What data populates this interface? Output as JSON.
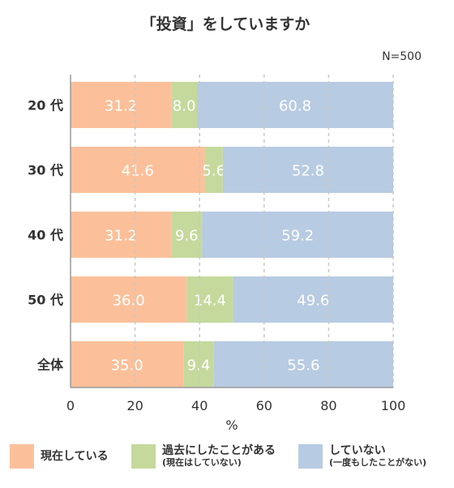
{
  "chart_data": {
    "type": "bar",
    "orientation": "horizontal",
    "stacked": true,
    "title": "「投資」をしていますか",
    "note": "N=500",
    "categories": [
      "20 代",
      "30 代",
      "40 代",
      "50 代",
      "全体"
    ],
    "series": [
      {
        "name": "現在している",
        "color": "#fbc09a",
        "values": [
          31.2,
          41.6,
          31.2,
          36.0,
          35.0
        ]
      },
      {
        "name": "過去にしたことがある",
        "sub": "(現在はしていない)",
        "color": "#c5d99c",
        "values": [
          8.0,
          5.6,
          9.6,
          14.4,
          9.4
        ]
      },
      {
        "name": "していない",
        "sub": "(一度もしたことがない)",
        "color": "#b7cbe2",
        "values": [
          60.8,
          52.8,
          59.2,
          49.6,
          55.6
        ]
      }
    ],
    "value_labels": [
      [
        "31.2",
        "41.6",
        "31.2",
        "36.0",
        "35.0"
      ],
      [
        "8.0",
        "5.6",
        "9.6",
        "14.4",
        "9.4"
      ],
      [
        "60.8",
        "52.8",
        "59.2",
        "49.6",
        "55.6"
      ]
    ],
    "xlabel": "%",
    "xlim": [
      0,
      100
    ],
    "xticks": [
      "0",
      "20",
      "40",
      "60",
      "80",
      "100"
    ],
    "grid": true,
    "legend_position": "bottom"
  }
}
